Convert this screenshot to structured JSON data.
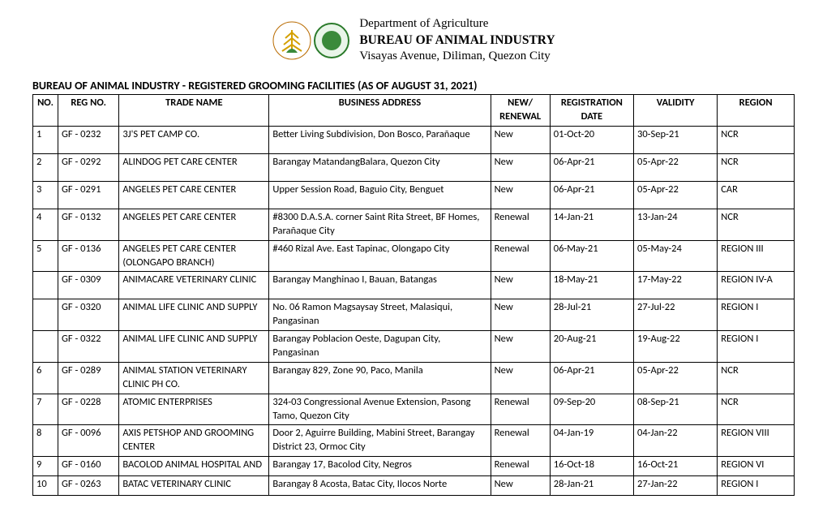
{
  "header": {
    "dept": "Department of Agriculture",
    "bureau": "BUREAU OF ANIMAL INDUSTRY",
    "address": "Visayas Avenue, Diliman, Quezon City"
  },
  "title": "BUREAU OF ANIMAL INDUSTRY - REGISTERED  GROOMING FACILITIES  (AS OF AUGUST 31, 2021)",
  "columns": {
    "no": "NO.",
    "regno": "REG NO.",
    "trade": "TRADE NAME",
    "addr": "BUSINESS ADDRESS",
    "nr1": "NEW/",
    "nr2": "RENEWAL",
    "date1": "REGISTRATION",
    "date2": "DATE",
    "validity": "VALIDITY",
    "region": "REGION"
  },
  "rows": [
    {
      "no": "1",
      "regno": "GF - 0232",
      "trade": "3J'S PET CAMP CO.",
      "addr": "Better Living Subdivision, Don Bosco, Parañaque",
      "nr": "New",
      "date": "01-Oct-20",
      "validity": "30-Sep-21",
      "region": "NCR"
    },
    {
      "no": "2",
      "regno": "GF - 0292",
      "trade": "ALINDOG PET CARE CENTER",
      "addr": "Barangay MatandangBalara, Quezon City",
      "nr": "New",
      "date": "06-Apr-21",
      "validity": "05-Apr-22",
      "region": "NCR"
    },
    {
      "no": "3",
      "regno": "GF - 0291",
      "trade": "ANGELES PET CARE CENTER",
      "addr": "Upper Session Road, Baguio City, Benguet",
      "nr": "New",
      "date": "06-Apr-21",
      "validity": "05-Apr-22",
      "region": "CAR"
    },
    {
      "no": "4",
      "regno": "GF - 0132",
      "trade": "ANGELES PET CARE CENTER",
      "addr": "#8300 D.A.S.A. corner Saint Rita Street, BF Homes, Parañaque City",
      "nr": "Renewal",
      "date": "14-Jan-21",
      "validity": "13-Jan-24",
      "region": "NCR"
    },
    {
      "no": "5",
      "regno": "GF - 0136",
      "trade": "ANGELES PET CARE CENTER (OLONGAPO BRANCH)",
      "addr": "#460 Rizal Ave. East Tapinac, Olongapo City",
      "nr": "Renewal",
      "date": "06-May-21",
      "validity": "05-May-24",
      "region": "REGION III"
    },
    {
      "no": "",
      "regno": "GF - 0309",
      "trade": "ANIMACARE VETERINARY CLINIC",
      "addr": "Barangay Manghinao I, Bauan, Batangas",
      "nr": "New",
      "date": "18-May-21",
      "validity": "17-May-22",
      "region": "REGION IV-A"
    },
    {
      "no": "",
      "regno": "GF - 0320",
      "trade": "ANIMAL LIFE CLINIC AND SUPPLY",
      "addr": "No. 06 Ramon Magsaysay Street, Malasiqui, Pangasinan",
      "nr": "New",
      "date": "28-Jul-21",
      "validity": "27-Jul-22",
      "region": "REGION I"
    },
    {
      "no": "",
      "regno": "GF - 0322",
      "trade": "ANIMAL LIFE CLINIC AND SUPPLY",
      "addr": "Barangay Poblacion Oeste, Dagupan City, Pangasinan",
      "nr": "New",
      "date": "20-Aug-21",
      "validity": "19-Aug-22",
      "region": "REGION I"
    },
    {
      "no": "6",
      "regno": "GF - 0289",
      "trade": "ANIMAL STATION VETERINARY CLINIC PH CO.",
      "addr": "Barangay 829, Zone 90, Paco, Manila",
      "nr": "New",
      "date": "06-Apr-21",
      "validity": "05-Apr-22",
      "region": "NCR"
    },
    {
      "no": "7",
      "regno": "GF - 0228",
      "trade": "ATOMIC ENTERPRISES",
      "addr": "324-03 Congressional Avenue Extension, Pasong Tamo, Quezon City",
      "nr": "Renewal",
      "date": "09-Sep-20",
      "validity": "08-Sep-21",
      "region": "NCR"
    },
    {
      "no": "8",
      "regno": "GF - 0096",
      "trade": "AXIS PETSHOP AND GROOMING CENTER",
      "addr": "Door 2, Aguirre Building, Mabini Street, Barangay District 23, Ormoc City",
      "nr": "Renewal",
      "date": "04-Jan-19",
      "validity": "04-Jan-22",
      "region": "REGION VIII"
    },
    {
      "no": "9",
      "regno": "GF - 0160",
      "trade": "BACOLOD ANIMAL HOSPITAL AND",
      "addr": "Barangay 17, Bacolod City, Negros",
      "nr": "Renewal",
      "date": "16-Oct-18",
      "validity": "16-Oct-21",
      "region": "REGION VI"
    },
    {
      "no": "10",
      "regno": "GF - 0263",
      "trade": "BATAC VETERINARY CLINIC",
      "addr": "Barangay 8 Acosta, Batac City, Ilocos Norte",
      "nr": "New",
      "date": "28-Jan-21",
      "validity": "27-Jan-22",
      "region": "REGION I"
    }
  ]
}
